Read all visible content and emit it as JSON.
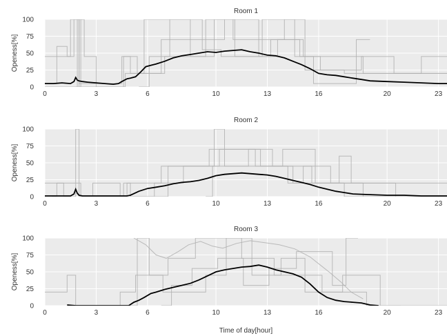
{
  "chart_data": [
    {
      "type": "line",
      "title": "Room 1",
      "xlabel": "",
      "ylabel": "Openess[%]",
      "xlim": [
        0,
        23.5
      ],
      "ylim": [
        0,
        100
      ],
      "xticks": [
        0,
        3,
        6,
        10,
        13,
        16,
        20,
        23
      ],
      "yticks": [
        0,
        25,
        50,
        75,
        100
      ],
      "grid": true,
      "mean_series": {
        "x": [
          0,
          0.5,
          1,
          1.5,
          1.7,
          1.8,
          1.9,
          2,
          2.2,
          2.5,
          3,
          3.5,
          4,
          4.3,
          4.5,
          4.8,
          5,
          5.3,
          5.6,
          5.9,
          6.2,
          6.5,
          7,
          7.5,
          8,
          8.5,
          9,
          9.5,
          10,
          10.5,
          11,
          11.5,
          12,
          12.5,
          13,
          13.5,
          14,
          14.5,
          15,
          15.5,
          16,
          16.5,
          17,
          17.5,
          18,
          18.5,
          19,
          20,
          21,
          22,
          23,
          23.5
        ],
        "y": [
          5,
          5,
          6,
          5,
          8,
          14,
          10,
          9,
          8,
          7,
          6,
          5,
          4,
          5,
          8,
          12,
          13,
          15,
          22,
          30,
          32,
          34,
          38,
          43,
          46,
          48,
          50,
          52,
          51,
          53,
          54,
          55,
          52,
          50,
          47,
          46,
          43,
          38,
          33,
          27,
          20,
          18,
          17,
          15,
          13,
          11,
          9,
          8,
          7,
          6,
          5,
          5
        ]
      },
      "raw_series": [
        {
          "x": [
            0,
            1.5,
            1.5,
            2.3,
            2.3,
            3,
            3,
            4.6,
            4.6,
            5.4,
            5.4,
            7,
            7,
            9.4,
            9.4,
            12.5,
            12.5,
            13.6,
            13.6,
            15.1,
            15.1,
            18.6,
            18.6,
            22,
            22,
            23.5
          ],
          "y": [
            45,
            45,
            100,
            100,
            45,
            45,
            0,
            0,
            45,
            45,
            20,
            20,
            45,
            45,
            100,
            100,
            45,
            45,
            70,
            70,
            45,
            45,
            20,
            20,
            45,
            45
          ]
        },
        {
          "x": [
            0,
            0.7,
            0.7,
            1.3,
            1.3,
            1.7,
            1.7,
            2,
            2,
            4.5,
            4.5,
            5,
            5,
            6.8,
            6.8,
            10.5,
            10.5,
            11,
            11,
            14,
            14,
            15.2,
            15.2,
            17.5,
            17.5,
            23.5
          ],
          "y": [
            5,
            5,
            60,
            60,
            45,
            45,
            100,
            100,
            5,
            5,
            45,
            45,
            20,
            20,
            70,
            70,
            100,
            100,
            70,
            70,
            100,
            100,
            25,
            25,
            20,
            20
          ]
        },
        {
          "x": [
            0,
            4.7,
            4.7,
            5.8,
            5.8,
            8.5,
            8.5,
            9.9,
            9.9,
            11.1,
            11.1,
            12.7,
            12.7,
            14.6,
            14.6,
            16.1,
            16.1,
            18.5,
            18.5,
            20.4,
            20.4,
            23.5
          ],
          "y": [
            0,
            0,
            20,
            20,
            100,
            100,
            45,
            45,
            100,
            100,
            45,
            45,
            100,
            100,
            45,
            45,
            25,
            25,
            45,
            45,
            20,
            20
          ]
        },
        {
          "x": [
            5.5,
            6.1,
            6.1,
            7.3,
            7.3,
            9.2,
            9.2,
            10.3,
            10.3,
            13.2,
            13.2,
            14.9,
            14.9,
            15.7,
            15.7,
            18.2,
            18.2,
            19
          ],
          "y": [
            0,
            0,
            45,
            45,
            100,
            100,
            55,
            55,
            45,
            45,
            70,
            70,
            45,
            45,
            5,
            5,
            70,
            70
          ]
        },
        {
          "x": [
            1.8,
            1.9,
            1.9,
            2,
            2,
            2.1,
            2.1,
            2.2
          ],
          "y": [
            0,
            0,
            100,
            100,
            0,
            0,
            100,
            100
          ]
        }
      ]
    },
    {
      "type": "line",
      "title": "Room 2",
      "xlabel": "",
      "ylabel": "Openess[%]",
      "xlim": [
        0,
        23.5
      ],
      "ylim": [
        0,
        100
      ],
      "xticks": [
        0,
        3,
        6,
        10,
        13,
        16,
        20,
        23
      ],
      "yticks": [
        0,
        25,
        50,
        75,
        100
      ],
      "grid": true,
      "mean_series": {
        "x": [
          0,
          0.5,
          1,
          1.5,
          1.7,
          1.8,
          1.9,
          2,
          2.2,
          2.5,
          3,
          4,
          4.8,
          5,
          5.5,
          6,
          6.5,
          7,
          7.5,
          8,
          8.5,
          9,
          9.5,
          10,
          10.5,
          11,
          11.5,
          12,
          12.5,
          13,
          13.5,
          14,
          14.5,
          15,
          15.5,
          16,
          16.5,
          17,
          17.5,
          18,
          19,
          20,
          21,
          22,
          23,
          23.5
        ],
        "y": [
          1,
          1,
          1,
          1,
          4,
          11,
          5,
          2,
          1,
          1,
          1,
          1,
          1,
          2,
          8,
          12,
          14,
          16,
          19,
          21,
          22,
          24,
          27,
          31,
          33,
          34,
          35,
          34,
          33,
          32,
          30,
          27,
          24,
          21,
          18,
          14,
          11,
          8,
          6,
          4,
          3,
          2,
          2,
          1,
          1,
          1
        ]
      },
      "raw_series": [
        {
          "x": [
            0,
            1.1,
            1.1,
            1.8,
            1.8,
            2,
            2,
            4.8,
            4.8,
            6.8,
            6.8,
            9.6,
            9.6,
            12.6,
            12.6,
            15.6,
            15.6,
            17.5,
            17.5,
            23.5
          ],
          "y": [
            20,
            20,
            0,
            0,
            100,
            100,
            0,
            0,
            20,
            20,
            45,
            45,
            70,
            70,
            45,
            45,
            20,
            20,
            0,
            0
          ]
        },
        {
          "x": [
            0.4,
            0.7,
            0.7,
            2.1,
            2.1,
            2.8,
            2.8,
            4.4,
            4.4,
            4.6,
            4.6,
            5,
            5,
            7.2,
            7.2,
            9.9,
            9.9,
            10.5,
            10.5,
            13.9,
            13.9,
            15.8,
            15.8,
            18.6,
            18.6,
            23.5
          ],
          "y": [
            0,
            0,
            20,
            20,
            0,
            0,
            20,
            20,
            0,
            0,
            20,
            20,
            0,
            0,
            45,
            45,
            100,
            100,
            45,
            45,
            70,
            70,
            20,
            20,
            0,
            0
          ]
        },
        {
          "x": [
            5.1,
            6.4,
            6.4,
            8.1,
            8.1,
            10.2,
            10.2,
            12.3,
            12.3,
            14.2,
            14.2,
            15.1,
            15.1,
            16.7,
            16.7,
            23.5
          ],
          "y": [
            0,
            0,
            20,
            20,
            45,
            45,
            70,
            70,
            45,
            45,
            20,
            20,
            45,
            45,
            20,
            20
          ]
        },
        {
          "x": [
            9.4,
            9.8,
            9.8,
            11.9,
            11.9,
            13.3,
            13.3,
            14.5,
            14.5,
            17.2,
            17.2,
            17.9,
            17.9,
            20.5,
            20.5,
            23.5
          ],
          "y": [
            0,
            0,
            45,
            45,
            70,
            70,
            45,
            45,
            20,
            20,
            60,
            60,
            20,
            20,
            0,
            0
          ]
        }
      ]
    },
    {
      "type": "line",
      "title": "Room 3",
      "xlabel": "Time of day[hour]",
      "ylabel": "Openess[%]",
      "xlim": [
        0,
        23.5
      ],
      "ylim": [
        0,
        100
      ],
      "xticks": [
        0,
        3,
        6,
        10,
        13,
        16,
        20,
        23
      ],
      "yticks": [
        0,
        25,
        50,
        75,
        100
      ],
      "grid": true,
      "mean_series": {
        "x": [
          1.3,
          1.8,
          4.9,
          5.2,
          5.5,
          5.8,
          6.2,
          6.5,
          7,
          7.5,
          8,
          8.5,
          9,
          9.5,
          10,
          10.5,
          11,
          11.5,
          12,
          12.5,
          13,
          13.5,
          14,
          14.5,
          15,
          15.5,
          16,
          16.5,
          17,
          17.5,
          18,
          18.5,
          19,
          19.5
        ],
        "y": [
          1,
          0,
          0,
          5,
          8,
          12,
          18,
          20,
          24,
          27,
          30,
          33,
          38,
          44,
          50,
          53,
          55,
          57,
          58,
          60,
          57,
          53,
          50,
          47,
          42,
          32,
          20,
          12,
          8,
          6,
          5,
          4,
          1,
          0
        ]
      },
      "raw_series": [
        {
          "x": [
            0,
            1.3,
            1.3,
            1.8,
            1.8,
            4.4,
            4.4,
            5.3,
            5.3,
            7.2,
            7.2,
            8.8,
            8.8,
            11.5,
            11.5,
            13.4,
            13.4,
            16.2,
            16.2,
            18.8,
            18.8,
            20.8
          ],
          "y": [
            20,
            20,
            45,
            45,
            0,
            0,
            20,
            20,
            45,
            45,
            70,
            70,
            100,
            100,
            70,
            70,
            45,
            45,
            20,
            20,
            0,
            0
          ]
        },
        {
          "x": [
            5,
            5.4,
            5.4,
            6.1,
            6.1,
            6.9,
            6.9,
            9.4,
            9.4,
            10.6,
            10.6,
            12.1,
            12.1,
            13.8,
            13.8,
            15.2,
            15.2,
            17.4,
            17.4,
            19.6,
            19.6,
            23.5
          ],
          "y": [
            0,
            0,
            100,
            100,
            45,
            45,
            20,
            20,
            45,
            45,
            100,
            100,
            45,
            45,
            70,
            70,
            20,
            20,
            45,
            45,
            0,
            0
          ]
        },
        {
          "x": [
            5.2,
            5.9,
            6.5,
            7.1,
            7.8,
            8.4,
            9.1,
            9.8,
            10.4,
            11.2,
            12,
            12.9,
            13.7,
            14.6,
            15.5,
            16.1,
            16.7,
            17.3,
            17.9,
            18.6
          ],
          "y": [
            100,
            90,
            75,
            70,
            80,
            90,
            95,
            88,
            85,
            92,
            96,
            93,
            90,
            84,
            72,
            60,
            48,
            35,
            20,
            10
          ]
        },
        {
          "x": [
            6.8,
            7.4,
            7.4,
            8.6,
            8.6,
            10.1,
            10.1,
            11.6,
            11.6,
            13.1,
            13.1,
            14.7,
            14.7,
            16.8,
            16.8,
            17.6,
            17.6,
            18.3
          ],
          "y": [
            0,
            0,
            30,
            30,
            55,
            55,
            70,
            70,
            30,
            30,
            55,
            55,
            80,
            80,
            30,
            30,
            100,
            100
          ]
        }
      ]
    }
  ]
}
